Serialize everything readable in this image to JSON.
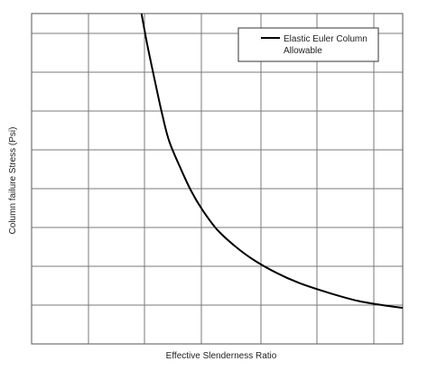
{
  "chart_data": {
    "type": "line",
    "title": "",
    "xlabel": "Effective Slenderness Ratio",
    "ylabel": "Column failure Stress (Psi)",
    "xlim": [
      0,
      100
    ],
    "ylim": [
      0,
      100
    ],
    "grid": true,
    "show_tick_labels": false,
    "legend": {
      "placement": "top-right",
      "entries": [
        "Elastic Euler Column Allowable"
      ]
    },
    "series": [
      {
        "name": "Elastic Euler Column Allowable",
        "color": "#000000",
        "x": [
          29.6,
          31.2,
          33,
          35,
          37,
          40,
          43,
          46,
          50,
          55,
          60,
          66,
          72,
          80,
          88,
          96,
          100
        ],
        "y": [
          100,
          90.4,
          80.8,
          70.5,
          61.6,
          53.5,
          46.3,
          40.6,
          34.6,
          29.4,
          25.3,
          21.5,
          18.5,
          15.5,
          13.0,
          11.5,
          10.9
        ]
      }
    ]
  }
}
